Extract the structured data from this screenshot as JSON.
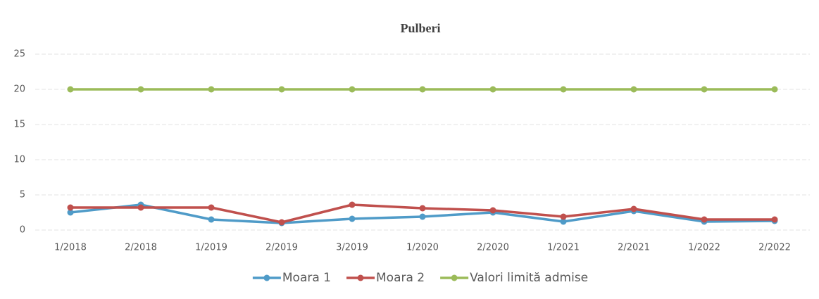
{
  "chart_data": {
    "type": "line",
    "title": "Pulberi",
    "categories": [
      "1/2018",
      "2/2018",
      "1/2019",
      "2/2019",
      "3/2019",
      "1/2020",
      "2/2020",
      "1/2021",
      "2/2021",
      "1/2022",
      "2/2022"
    ],
    "series": [
      {
        "name": "Moara 1",
        "color": "#4f9bc8",
        "values": [
          2.5,
          3.6,
          1.5,
          1.0,
          1.6,
          1.9,
          2.5,
          1.2,
          2.7,
          1.2,
          1.3
        ]
      },
      {
        "name": "Moara 2",
        "color": "#c0504d",
        "values": [
          3.2,
          3.2,
          3.2,
          1.1,
          3.6,
          3.1,
          2.8,
          1.9,
          3.0,
          1.5,
          1.5
        ]
      },
      {
        "name": "Valori limită admise",
        "color": "#9bbb59",
        "values": [
          20,
          20,
          20,
          20,
          20,
          20,
          20,
          20,
          20,
          20,
          20
        ]
      }
    ],
    "ylim": [
      0,
      25
    ],
    "yticks": [
      0,
      5,
      10,
      15,
      20,
      25
    ],
    "grid": true,
    "legend": "bottom"
  }
}
